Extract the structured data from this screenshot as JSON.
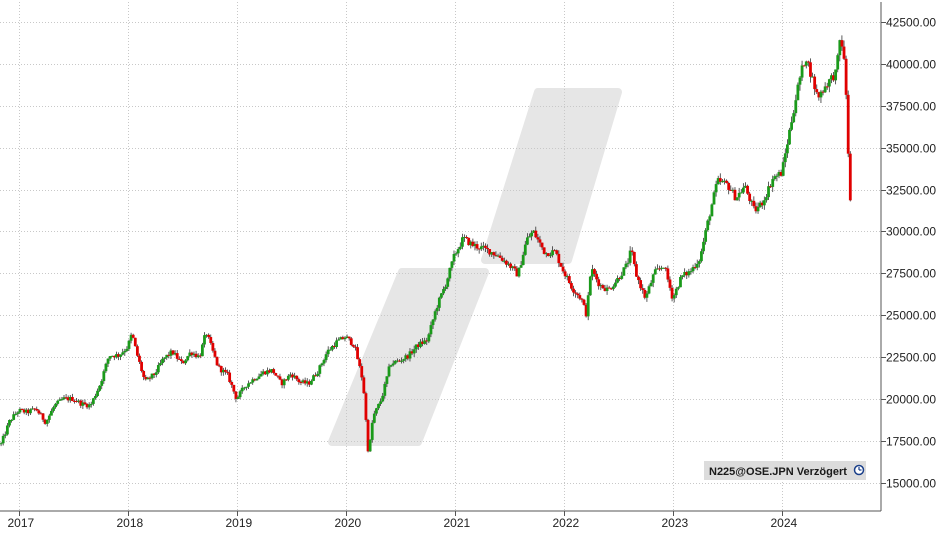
{
  "source_label": "N225@OSE.JPN Verzögert",
  "colors": {
    "up": "#1a9a1a",
    "down": "#e00000",
    "wick": "#333333",
    "grid": "#c8c8c8",
    "axis": "#555555",
    "watermark": "#e6e6e6",
    "badge_bg": "#dcdcdc"
  },
  "chart_data": {
    "type": "candlestick",
    "title": "",
    "xlabel": "",
    "ylabel": "",
    "x_ticks": [
      "2017",
      "2018",
      "2019",
      "2020",
      "2021",
      "2022",
      "2023",
      "2024"
    ],
    "y_ticks": [
      "15000.00",
      "17500.00",
      "20000.00",
      "22500.00",
      "25000.00",
      "27500.00",
      "30000.00",
      "32500.00",
      "35000.00",
      "37500.00",
      "40000.00",
      "42500.00"
    ],
    "ylim": [
      13300,
      43700
    ],
    "xlim": [
      2016.83,
      2024.91
    ],
    "grid": true,
    "y_axis_position": "right",
    "series": [
      {
        "path": [
          [
            2016.84,
            17300
          ],
          [
            2016.92,
            18700
          ],
          [
            2017.0,
            19300
          ],
          [
            2017.08,
            19200
          ],
          [
            2017.16,
            19400
          ],
          [
            2017.25,
            18600
          ],
          [
            2017.33,
            19600
          ],
          [
            2017.41,
            20000
          ],
          [
            2017.5,
            20000
          ],
          [
            2017.58,
            19700
          ],
          [
            2017.66,
            19600
          ],
          [
            2017.75,
            20900
          ],
          [
            2017.83,
            22600
          ],
          [
            2017.92,
            22600
          ],
          [
            2018.0,
            23100
          ],
          [
            2018.04,
            23900
          ],
          [
            2018.08,
            22800
          ],
          [
            2018.16,
            21000
          ],
          [
            2018.25,
            21500
          ],
          [
            2018.33,
            22400
          ],
          [
            2018.41,
            22800
          ],
          [
            2018.5,
            22100
          ],
          [
            2018.58,
            22800
          ],
          [
            2018.66,
            22500
          ],
          [
            2018.72,
            24000
          ],
          [
            2018.83,
            21900
          ],
          [
            2018.92,
            21400
          ],
          [
            2019.0,
            20000
          ],
          [
            2019.08,
            20800
          ],
          [
            2019.16,
            21200
          ],
          [
            2019.25,
            21600
          ],
          [
            2019.33,
            21700
          ],
          [
            2019.41,
            20900
          ],
          [
            2019.5,
            21500
          ],
          [
            2019.58,
            21000
          ],
          [
            2019.66,
            20900
          ],
          [
            2019.75,
            21700
          ],
          [
            2019.83,
            22800
          ],
          [
            2019.92,
            23400
          ],
          [
            2020.0,
            23700
          ],
          [
            2020.08,
            23200
          ],
          [
            2020.16,
            21000
          ],
          [
            2020.21,
            16600
          ],
          [
            2020.25,
            18900
          ],
          [
            2020.33,
            20000
          ],
          [
            2020.41,
            22100
          ],
          [
            2020.5,
            22300
          ],
          [
            2020.58,
            22600
          ],
          [
            2020.66,
            23200
          ],
          [
            2020.75,
            23500
          ],
          [
            2020.83,
            25400
          ],
          [
            2020.92,
            26900
          ],
          [
            2021.0,
            28600
          ],
          [
            2021.08,
            29600
          ],
          [
            2021.16,
            29200
          ],
          [
            2021.25,
            29000
          ],
          [
            2021.33,
            28800
          ],
          [
            2021.41,
            28500
          ],
          [
            2021.5,
            28000
          ],
          [
            2021.58,
            27400
          ],
          [
            2021.66,
            29500
          ],
          [
            2021.72,
            30000
          ],
          [
            2021.83,
            28700
          ],
          [
            2021.92,
            28800
          ],
          [
            2022.0,
            27600
          ],
          [
            2022.08,
            26600
          ],
          [
            2022.16,
            26000
          ],
          [
            2022.21,
            25000
          ],
          [
            2022.25,
            27800
          ],
          [
            2022.33,
            26800
          ],
          [
            2022.41,
            26500
          ],
          [
            2022.5,
            27200
          ],
          [
            2022.58,
            28000
          ],
          [
            2022.62,
            28900
          ],
          [
            2022.66,
            27500
          ],
          [
            2022.75,
            26000
          ],
          [
            2022.83,
            27500
          ],
          [
            2022.92,
            28000
          ],
          [
            2023.0,
            26000
          ],
          [
            2023.08,
            27300
          ],
          [
            2023.16,
            27600
          ],
          [
            2023.25,
            28400
          ],
          [
            2023.33,
            30800
          ],
          [
            2023.41,
            33000
          ],
          [
            2023.5,
            32800
          ],
          [
            2023.58,
            32000
          ],
          [
            2023.66,
            32700
          ],
          [
            2023.75,
            31200
          ],
          [
            2023.83,
            31800
          ],
          [
            2023.92,
            33200
          ],
          [
            2024.0,
            33500
          ],
          [
            2024.08,
            36300
          ],
          [
            2024.16,
            39000
          ],
          [
            2024.22,
            40500
          ],
          [
            2024.25,
            39800
          ],
          [
            2024.33,
            38000
          ],
          [
            2024.41,
            38800
          ],
          [
            2024.5,
            39500
          ],
          [
            2024.54,
            41800
          ],
          [
            2024.57,
            40200
          ],
          [
            2024.59,
            38200
          ],
          [
            2024.61,
            34600
          ],
          [
            2024.63,
            31500
          ]
        ]
      }
    ]
  }
}
